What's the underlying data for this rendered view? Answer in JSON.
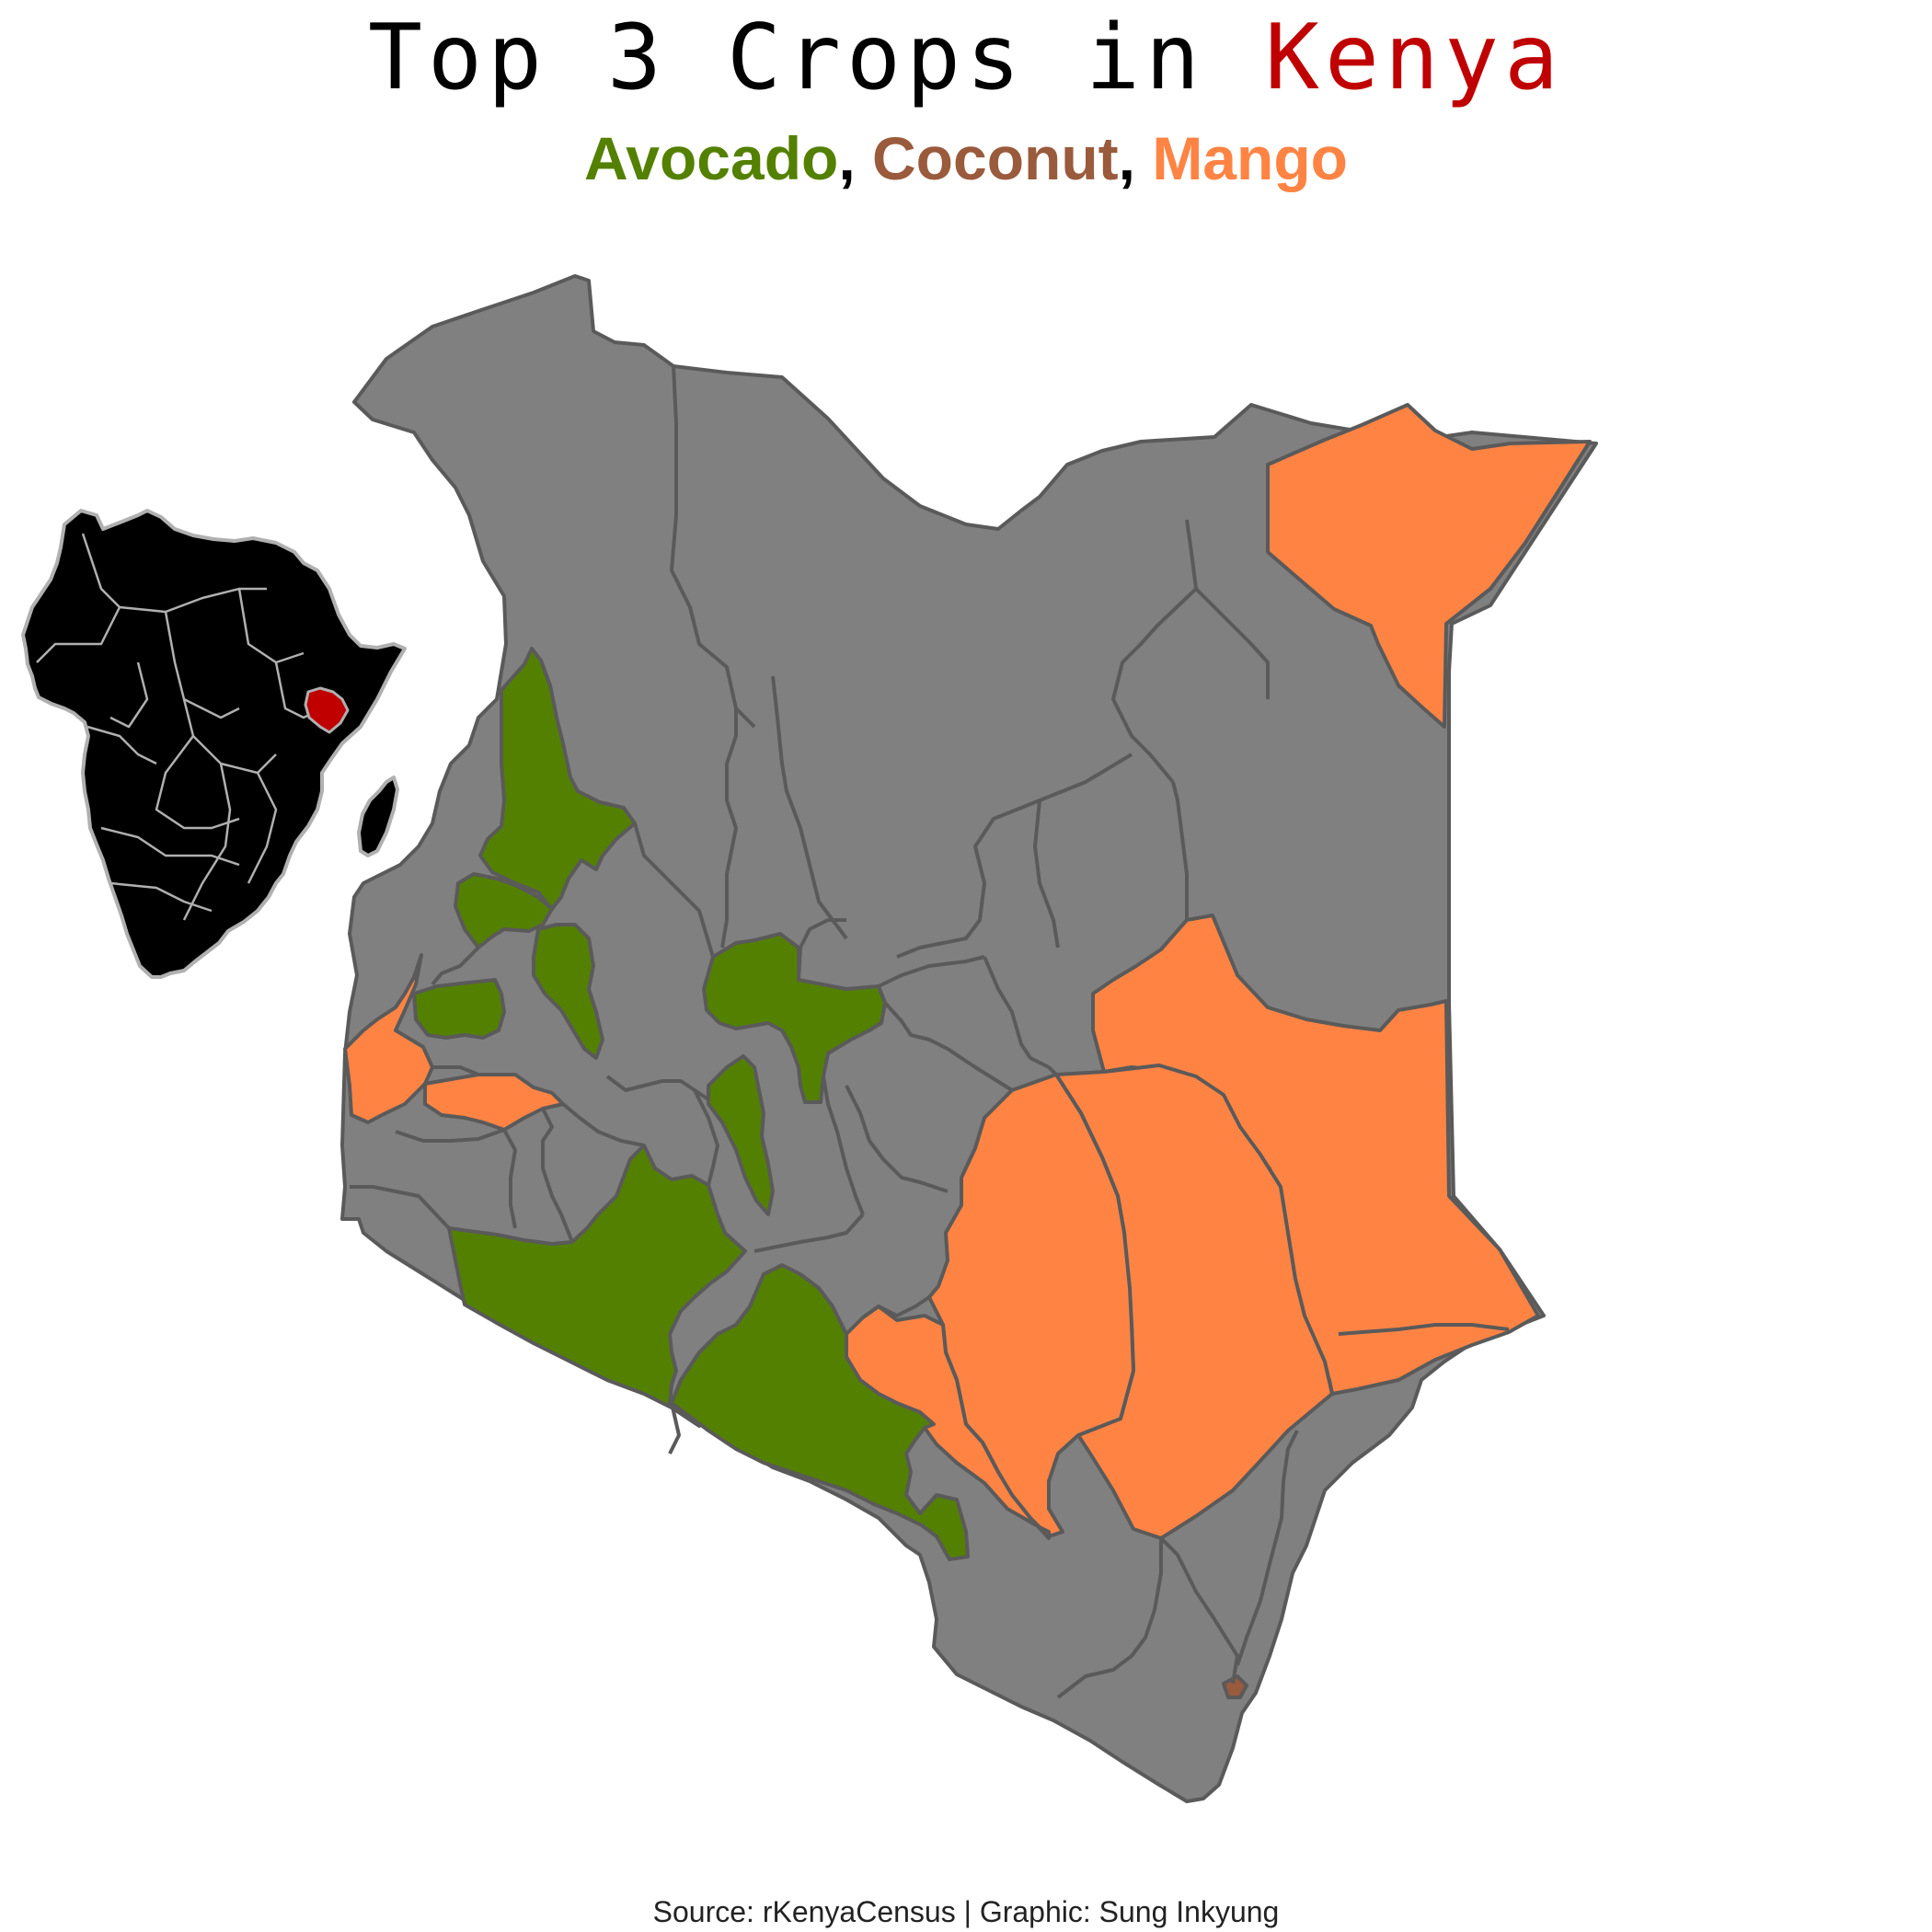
{
  "title": {
    "prefix": "Top 3 Crops in ",
    "country": "Kenya"
  },
  "subtitle": {
    "crops": [
      {
        "label": "Avocado",
        "color": "#548000"
      },
      {
        "label": "Coconut",
        "color": "#9a5a3c"
      },
      {
        "label": "Mango",
        "color": "#ff8444"
      }
    ],
    "separator": ", "
  },
  "source": "Source: rKenyaCensus | Graphic: Sung Inkyung",
  "colors": {
    "no_data": "#808080",
    "border": "#5a5a5a",
    "highlight_country": "#c00000",
    "africa_fill": "#000000",
    "africa_border": "#b0b0b0"
  },
  "map_legend": {
    "inset": "Africa locator map with Kenya highlighted"
  }
}
